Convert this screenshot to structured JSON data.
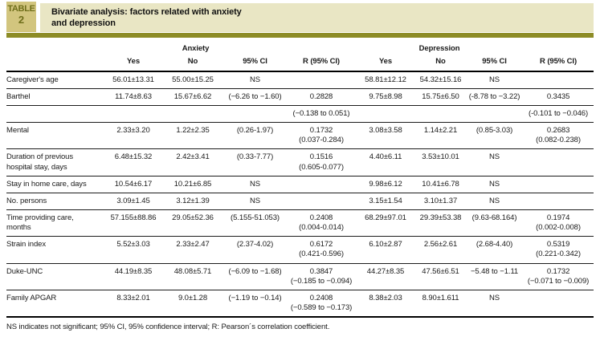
{
  "colors": {
    "band_dark": "#8d8c26",
    "label_box_bg": "#d2c57e",
    "label_box_text": "#6f6e1a",
    "title_bg": "#e9e6c4"
  },
  "header": {
    "label_line1": "TABLE",
    "label_line2": "2",
    "title_line1": "Bivariate analysis: factors related with anxiety",
    "title_line2": "and depression"
  },
  "table": {
    "group_headers": [
      "Anxiety",
      "Depression"
    ],
    "columns": [
      "Yes",
      "No",
      "95% CI",
      "R (95% CI)"
    ],
    "rows": [
      {
        "label": "Caregiver's age",
        "cells": [
          "56.01±13.31",
          "55.00±15.25",
          "NS",
          "",
          "58.81±12.12",
          "54.32±15.16",
          "NS",
          ""
        ]
      },
      {
        "label": "Barthel",
        "cells": [
          "11.74±8.63",
          "15.67±6.62",
          "(−6.26 to −1.60)",
          "0.2828",
          "9.75±8.98",
          "15.75±6.50",
          "(-8.78 to −3.22)",
          "0.3435"
        ]
      },
      {
        "label": "",
        "cells": [
          "",
          "",
          "",
          "(−0.138 to 0.051)",
          "",
          "",
          "",
          "(-0.101 to −0.046)"
        ]
      },
      {
        "label": "Mental",
        "cells": [
          "2.33±3.20",
          "1.22±2.35",
          "(0.26-1.97)",
          "0.1732\n(0.037-0.284)",
          "3.08±3.58",
          "1.14±2.21",
          "(0.85-3.03)",
          "0.2683\n(0.082-0.238)"
        ]
      },
      {
        "label": "Duration of previous hospital stay, days",
        "cells": [
          "6.48±15.32",
          "2.42±3.41",
          "(0.33-7.77)",
          "0.1516\n(0.605-0.077)",
          "4.40±6.11",
          "3.53±10.01",
          "NS",
          ""
        ]
      },
      {
        "label": "Stay in home care, days",
        "cells": [
          "10.54±6.17",
          "10.21±6.85",
          "NS",
          "",
          "9.98±6.12",
          "10.41±6.78",
          "NS",
          ""
        ]
      },
      {
        "label": "No. persons",
        "cells": [
          "3.09±1.45",
          "3.12±1.39",
          "NS",
          "",
          "3.15±1.54",
          "3.10±1.37",
          "NS",
          ""
        ]
      },
      {
        "label": "Time providing care, months",
        "cells": [
          "57.155±88.86",
          "29.05±52.36",
          "(5.155-51.053)",
          "0.2408\n(0.004-0.014)",
          "68.29±97.01",
          "29.39±53.38",
          "(9.63-68.164)",
          "0.1974\n(0.002-0.008)"
        ]
      },
      {
        "label": "Strain index",
        "cells": [
          "5.52±3.03",
          "2.33±2.47",
          "(2.37-4.02)",
          "0.6172\n(0.421-0.596)",
          "6.10±2.87",
          "2.56±2.61",
          "(2.68-4.40)",
          "0.5319\n(0.221-0.342)"
        ]
      },
      {
        "label": "Duke-UNC",
        "cells": [
          "44.19±8.35",
          "48.08±5.71",
          "(−6.09 to −1.68)",
          "0.3847\n(−0.185 to −0.094)",
          "44.27±8.35",
          "47.56±6.51",
          "−5.48 to −1.11",
          "0.1732\n(−0.071 to −0.009)"
        ]
      },
      {
        "label": "Family APGAR",
        "cells": [
          "8.33±2.01",
          "9.0±1.28",
          "(−1.19 to −0.14)",
          "0.2408\n(−0.589 to −0.173)",
          "8.38±2.03",
          "8.90±1.611",
          "NS",
          ""
        ]
      }
    ]
  },
  "footnote": "NS indicates not significant; 95% CI, 95% confidence interval; R: Pearson´s correlation coefficient."
}
